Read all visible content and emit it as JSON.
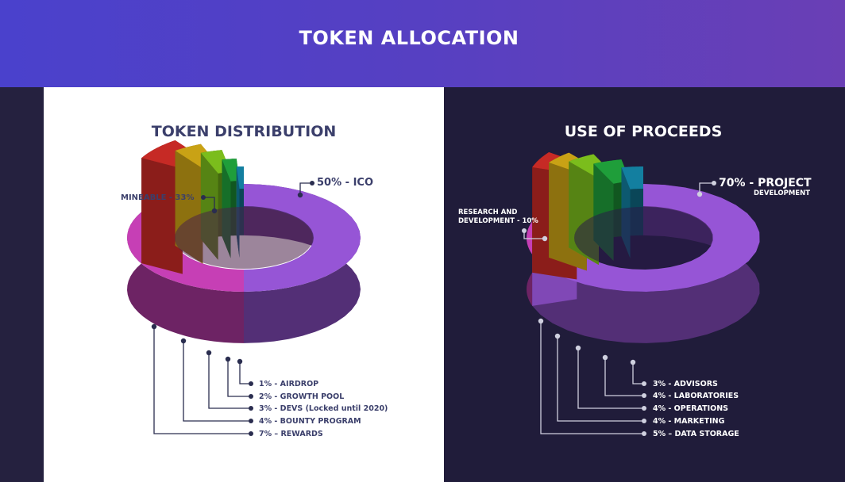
{
  "header": {
    "title": "TOKEN ALLOCATION"
  },
  "colors": {
    "header_start": "#4a41cc",
    "header_end": "#6a3fb5",
    "left_bg": "#ffffff",
    "right_bg": "#201c3a",
    "left_text": "#3b3f6b",
    "right_text": "#ffffff"
  },
  "chart_data": [
    {
      "type": "pie",
      "title": "TOKEN DISTRIBUTION",
      "style": "3d-stepped-donut",
      "slices": [
        {
          "label": "50% - ICO",
          "value": 50,
          "color": "#9655d6"
        },
        {
          "label": "MINEABLE - 33%",
          "value": 33,
          "color": "#c63fb5"
        },
        {
          "label": "7% – REWARDS",
          "value": 7,
          "color": "#c62a25"
        },
        {
          "label": "4% - BOUNTY PROGRAM",
          "value": 4,
          "color": "#c9a215"
        },
        {
          "label": "3% - DEVS (Locked until 2020)",
          "value": 3,
          "color": "#7bbd1c"
        },
        {
          "label": "2% - GROWTH POOL",
          "value": 2,
          "color": "#1f9e3a"
        },
        {
          "label": "1% - AIRDROP",
          "value": 1,
          "color": "#137fa0"
        }
      ]
    },
    {
      "type": "pie",
      "title": "USE OF PROCEEDS",
      "style": "3d-stepped-donut",
      "slices": [
        {
          "label": "70% - PROJECT",
          "sublabel": "DEVELOPMENT",
          "value": 70,
          "color": "#9655d6"
        },
        {
          "label": "RESEARCH AND",
          "sublabel": "DEVELOPMENT - 10%",
          "value": 10,
          "color": "#c63fb5"
        },
        {
          "label": "5% – DATA STORAGE",
          "value": 5,
          "color": "#c62a25"
        },
        {
          "label": "4% - MARKETING",
          "value": 4,
          "color": "#c9a215"
        },
        {
          "label": "4% - OPERATIONS",
          "value": 4,
          "color": "#7bbd1c"
        },
        {
          "label": "4% - LABORATORIES",
          "value": 4,
          "color": "#1f9e3a"
        },
        {
          "label": "3% - ADVISORS",
          "value": 3,
          "color": "#137fa0"
        }
      ]
    }
  ]
}
